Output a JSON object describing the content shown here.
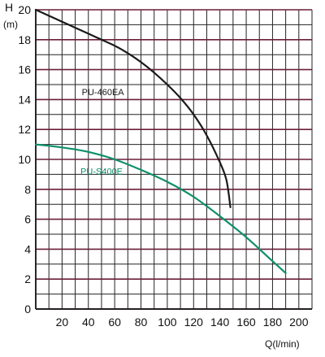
{
  "chart_data": {
    "type": "line",
    "ylabel_top": "H",
    "ylabel_unit": "(m)",
    "xlabel": "Q(l/min)",
    "xlim": [
      0,
      210
    ],
    "ylim": [
      0,
      20
    ],
    "x_ticks": [
      "20",
      "40",
      "60",
      "80",
      "100",
      "120",
      "140",
      "160",
      "180",
      "200"
    ],
    "y_ticks": [
      "0",
      "2",
      "4",
      "6",
      "8",
      "10",
      "12",
      "14",
      "16",
      "18",
      "20"
    ],
    "grid": true,
    "series": [
      {
        "name": "PU-460EA",
        "color": "#1a1a1a",
        "x": [
          0,
          10,
          20,
          30,
          40,
          50,
          60,
          70,
          80,
          90,
          100,
          110,
          120,
          130,
          140,
          145,
          148
        ],
        "y": [
          20,
          19.6,
          19.2,
          18.8,
          18.4,
          18.0,
          17.6,
          17.1,
          16.5,
          15.8,
          15.0,
          14.1,
          13.0,
          11.6,
          9.8,
          8.6,
          6.8
        ]
      },
      {
        "name": "PU-S400E",
        "color": "#0e8f6a",
        "x": [
          0,
          20,
          40,
          60,
          80,
          100,
          120,
          140,
          160,
          180,
          190
        ],
        "y": [
          11,
          10.8,
          10.5,
          10.0,
          9.3,
          8.5,
          7.5,
          6.2,
          4.8,
          3.2,
          2.4
        ]
      }
    ]
  }
}
